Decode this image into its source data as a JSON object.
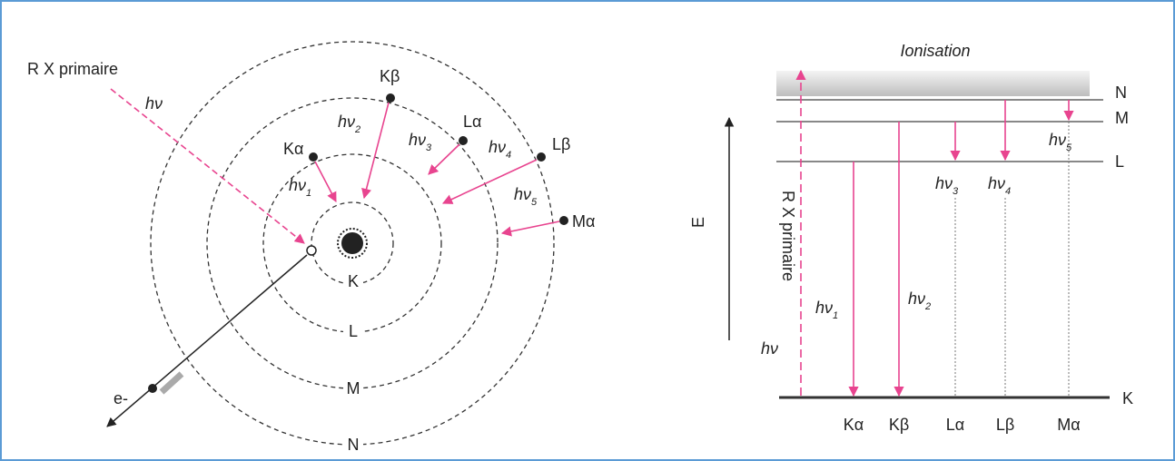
{
  "left": {
    "primary_beam": "R X primaire",
    "incident": "hν",
    "electron_out": "e-",
    "shells": [
      "K",
      "L",
      "M",
      "N"
    ],
    "transitions": [
      {
        "name": "Kα",
        "photon": "hν",
        "index": "1"
      },
      {
        "name": "Kβ",
        "photon": "hν",
        "index": "2"
      },
      {
        "name": "Lα",
        "photon": "hν",
        "index": "3"
      },
      {
        "name": "Lβ",
        "photon": "hν",
        "index": "4"
      },
      {
        "name": "Mα",
        "photon": "hν",
        "index": "5"
      }
    ]
  },
  "right": {
    "ionisation": "Ionisation",
    "levels": [
      "N",
      "M",
      "L",
      "K"
    ],
    "energy_axis": "E",
    "primary_beam": "R X primaire",
    "incident": "hν",
    "photons": [
      {
        "photon": "hν",
        "index": "1"
      },
      {
        "photon": "hν",
        "index": "2"
      },
      {
        "photon": "hν",
        "index": "3"
      },
      {
        "photon": "hν",
        "index": "4"
      },
      {
        "photon": "hν",
        "index": "5"
      }
    ],
    "lines": [
      "Kα",
      "Kβ",
      "Lα",
      "Lβ",
      "Mα"
    ]
  }
}
